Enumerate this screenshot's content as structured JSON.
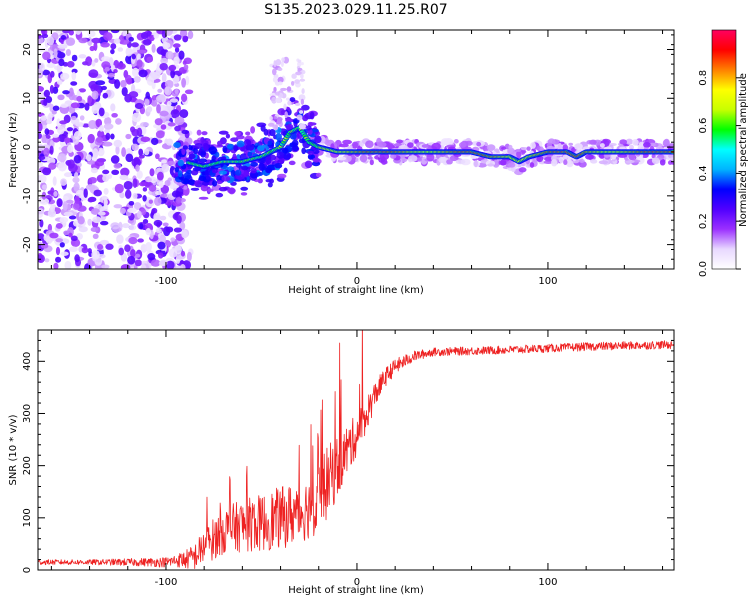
{
  "title": "S135.2023.029.11.25.R07",
  "chart_data": [
    {
      "type": "heatmap",
      "xlabel": "Height of straight line (km)",
      "ylabel": "Frequency (Hz)",
      "xlim": [
        -167,
        166
      ],
      "ylim": [
        -25,
        24
      ],
      "xticks": [
        -100,
        0,
        100
      ],
      "yticks": [
        -20,
        -10,
        0,
        10,
        20
      ],
      "grid": false,
      "colorbar": {
        "label": "Normalized spectral amplitude",
        "range": [
          0.0,
          1.0
        ],
        "ticks": [
          0.0,
          0.2,
          0.4,
          0.6,
          0.8
        ],
        "tick_labels": [
          "0.0",
          "0.2",
          "0.4",
          "0.6",
          "0.8"
        ],
        "colors": [
          "#ffffff",
          "#e8d8ff",
          "#9b30ff",
          "#5000ff",
          "#0000ff",
          "#00b4ff",
          "#00ffff",
          "#00ff00",
          "#c8ff00",
          "#ffff00",
          "#ff8000",
          "#ff0000",
          "#ff0060"
        ]
      },
      "ridge": {
        "x": [
          -90,
          -80,
          -70,
          -60,
          -50,
          -40,
          -35,
          -30,
          -25,
          -20,
          -10,
          0,
          10,
          20,
          40,
          60,
          70,
          80,
          85,
          90,
          100,
          110,
          115,
          120,
          140,
          160,
          166
        ],
        "freq": [
          -3,
          -4,
          -3,
          -3,
          -2,
          0,
          3,
          4,
          1,
          0,
          -1,
          -1,
          -1,
          -1,
          -1,
          -1,
          -2,
          -2,
          -3,
          -2,
          -1,
          -1,
          -2,
          -1,
          -1,
          -1,
          -1
        ]
      }
    },
    {
      "type": "line",
      "xlabel": "Height of straight line (km)",
      "ylabel": "SNR (10 * v/v)",
      "xlim": [
        -167,
        166
      ],
      "ylim": [
        0,
        460
      ],
      "xticks": [
        -100,
        0,
        100
      ],
      "yticks": [
        0,
        100,
        200,
        300,
        400
      ],
      "grid": false,
      "color": "#ee2222",
      "envelope": {
        "x": [
          -167,
          -140,
          -110,
          -100,
          -95,
          -90,
          -85,
          -80,
          -70,
          -60,
          -50,
          -40,
          -30,
          -25,
          -20,
          -15,
          -10,
          -5,
          0,
          5,
          10,
          15,
          20,
          30,
          40,
          60,
          80,
          100,
          120,
          140,
          166
        ],
        "mean": [
          15,
          15,
          15,
          15,
          18,
          20,
          25,
          45,
          75,
          85,
          90,
          100,
          110,
          120,
          140,
          170,
          200,
          230,
          260,
          300,
          340,
          370,
          390,
          410,
          418,
          420,
          422,
          425,
          428,
          430,
          432
        ],
        "noise": [
          5,
          5,
          8,
          10,
          12,
          18,
          25,
          35,
          45,
          50,
          55,
          60,
          60,
          60,
          70,
          70,
          60,
          50,
          40,
          35,
          25,
          18,
          15,
          10,
          8,
          8,
          8,
          8,
          8,
          8,
          8
        ]
      }
    }
  ]
}
